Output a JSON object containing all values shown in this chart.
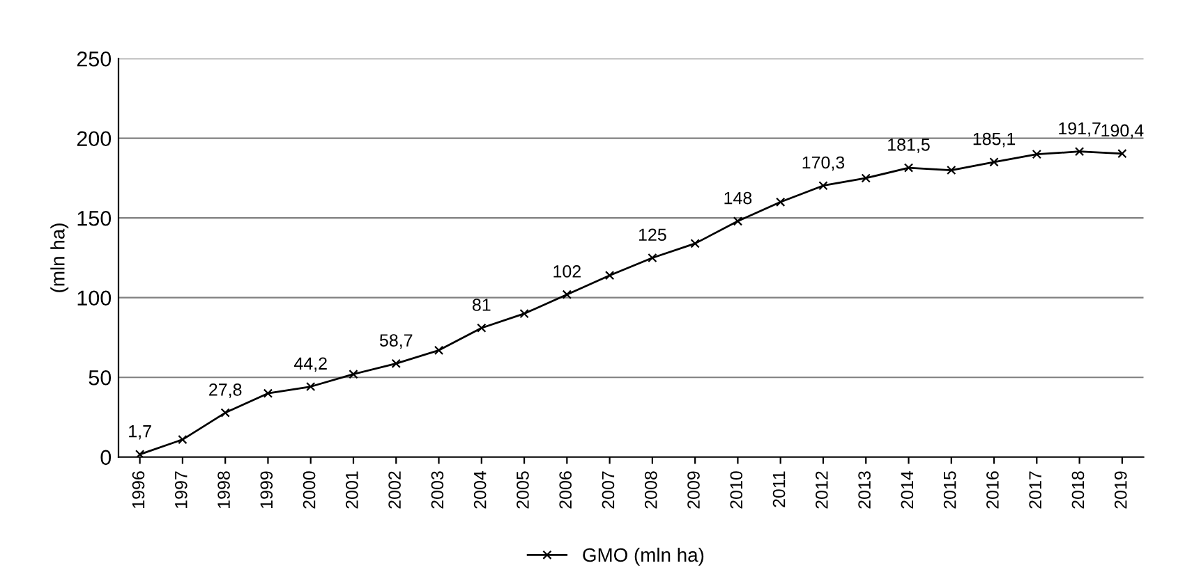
{
  "chart_data": {
    "type": "line",
    "ylabel": "(mln ha)",
    "categories": [
      "1996",
      "1997",
      "1998",
      "1999",
      "2000",
      "2001",
      "2002",
      "2003",
      "2004",
      "2005",
      "2006",
      "2007",
      "2008",
      "2009",
      "2010",
      "2011",
      "2012",
      "2013",
      "2014",
      "2015",
      "2016",
      "2017",
      "2018",
      "2019"
    ],
    "series": [
      {
        "name": "GMO (mln ha)",
        "color": "#000000",
        "values": [
          1.7,
          11,
          27.8,
          40,
          44.2,
          52,
          58.7,
          67,
          81,
          90,
          102,
          114,
          125,
          134,
          148,
          160,
          170.3,
          175,
          181.5,
          180,
          185.1,
          190,
          191.7,
          190.4
        ],
        "value_labels": [
          "1,7",
          null,
          "27,8",
          null,
          "44,2",
          null,
          "58,7",
          null,
          "81",
          null,
          "102",
          null,
          "125",
          null,
          "148",
          null,
          "170,3",
          null,
          "181,5",
          null,
          "185,1",
          null,
          "191,7",
          "190,4"
        ]
      }
    ],
    "ylim": [
      0,
      250
    ],
    "yticks": [
      0,
      50,
      100,
      150,
      200,
      250
    ],
    "grid": "y",
    "legend": "bottom",
    "marker": "cross",
    "line_style": "solid"
  }
}
